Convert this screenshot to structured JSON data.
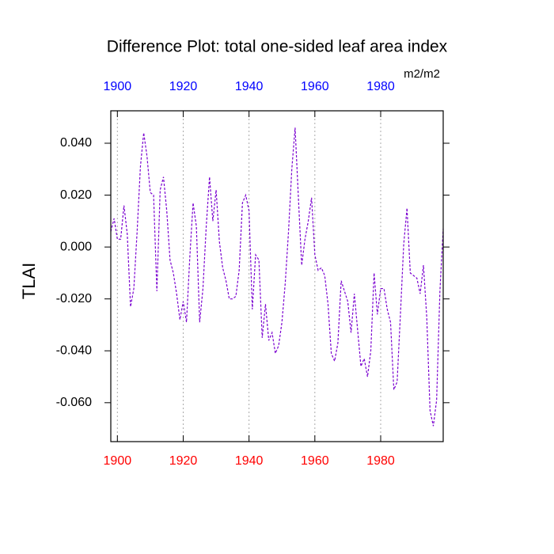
{
  "chart_data": {
    "type": "line",
    "title": "Difference Plot: total one-sided leaf area index",
    "y_label": "TLAI",
    "units": "m2/m2",
    "x": [
      1898,
      1899,
      1900,
      1901,
      1902,
      1903,
      1904,
      1905,
      1906,
      1907,
      1908,
      1909,
      1910,
      1911,
      1912,
      1913,
      1914,
      1915,
      1916,
      1917,
      1918,
      1919,
      1920,
      1921,
      1922,
      1923,
      1924,
      1925,
      1926,
      1927,
      1928,
      1929,
      1930,
      1931,
      1932,
      1933,
      1934,
      1935,
      1936,
      1937,
      1938,
      1939,
      1940,
      1941,
      1942,
      1943,
      1944,
      1945,
      1946,
      1947,
      1948,
      1949,
      1950,
      1951,
      1952,
      1953,
      1954,
      1955,
      1956,
      1957,
      1958,
      1959,
      1960,
      1961,
      1962,
      1963,
      1964,
      1965,
      1966,
      1967,
      1968,
      1969,
      1970,
      1971,
      1972,
      1973,
      1974,
      1975,
      1976,
      1977,
      1978,
      1979,
      1980,
      1981,
      1982,
      1983,
      1984,
      1985,
      1986,
      1987,
      1988,
      1989,
      1990,
      1991,
      1992,
      1993,
      1994,
      1995,
      1996,
      1997,
      1998,
      1999
    ],
    "series": [
      {
        "color": "#7a00d0",
        "dash": "dashed",
        "values": [
          0.006,
          0.011,
          0.003,
          0.003,
          0.016,
          0.005,
          -0.023,
          -0.016,
          0.006,
          0.031,
          0.044,
          0.035,
          0.021,
          0.02,
          -0.017,
          0.022,
          0.027,
          0.014,
          -0.005,
          -0.01,
          -0.018,
          -0.028,
          -0.021,
          -0.029,
          -0.004,
          0.017,
          0.008,
          -0.029,
          -0.016,
          0.008,
          0.027,
          0.01,
          0.022,
          0.002,
          -0.008,
          -0.013,
          -0.02,
          -0.02,
          -0.019,
          -0.009,
          0.017,
          0.02,
          0.014,
          -0.024,
          -0.003,
          -0.005,
          -0.035,
          -0.022,
          -0.036,
          -0.033,
          -0.041,
          -0.038,
          -0.029,
          -0.014,
          0.006,
          0.03,
          0.046,
          0.019,
          -0.007,
          0.003,
          0.01,
          0.019,
          -0.003,
          -0.009,
          -0.008,
          -0.011,
          -0.022,
          -0.041,
          -0.044,
          -0.037,
          -0.013,
          -0.017,
          -0.021,
          -0.033,
          -0.018,
          -0.032,
          -0.046,
          -0.043,
          -0.05,
          -0.04,
          -0.01,
          -0.026,
          -0.016,
          -0.016,
          -0.024,
          -0.029,
          -0.055,
          -0.052,
          -0.026,
          0.001,
          0.015,
          -0.01,
          -0.011,
          -0.012,
          -0.018,
          -0.007,
          -0.027,
          -0.063,
          -0.069,
          -0.059,
          -0.017,
          0.007
        ]
      }
    ],
    "xlim": [
      1898,
      1999
    ],
    "ylim": [
      -0.075,
      0.0525
    ],
    "xticks": [
      1900,
      1920,
      1940,
      1960,
      1980
    ],
    "xtick_color": "#ff0000",
    "x2ticks": [
      1900,
      1920,
      1940,
      1960,
      1980
    ],
    "x2tick_color": "#0000ff",
    "yticks": [
      {
        "value": 0.04,
        "label": "0.040"
      },
      {
        "value": 0.02,
        "label": "0.020"
      },
      {
        "value": 0,
        "label": "0.000"
      },
      {
        "value": -0.02,
        "label": "-0.020"
      },
      {
        "value": -0.04,
        "label": "-0.040"
      },
      {
        "value": -0.06,
        "label": "-0.060"
      }
    ],
    "grid": true
  }
}
